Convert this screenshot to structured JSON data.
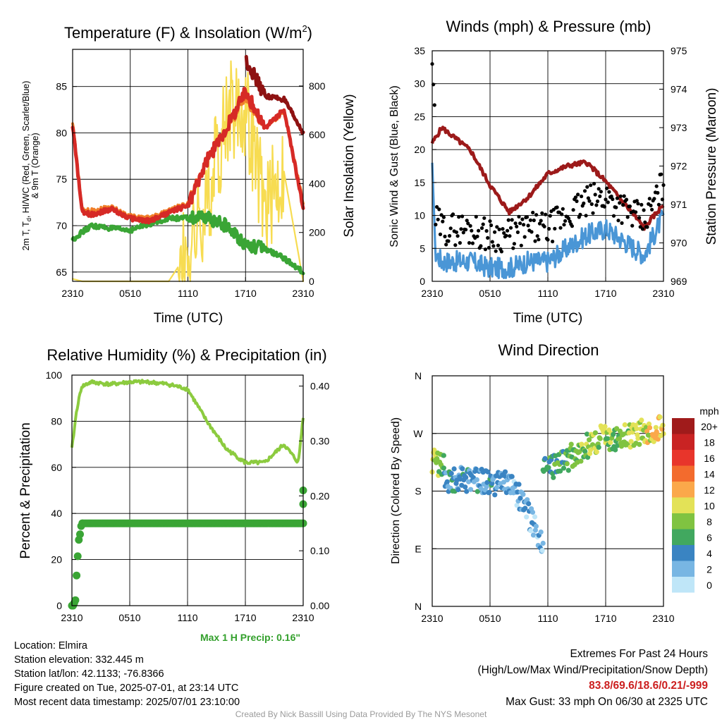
{
  "x_ticks": [
    "2310",
    "0510",
    "1110",
    "1710",
    "2310"
  ],
  "temperature_panel": {
    "title_main": "Temperature (F) & Insolation (W/m",
    "title_sup": "2",
    "title_close": ")",
    "ylabel_line1": "2m T, T",
    "ylabel_sub": "d",
    "ylabel_line1_rest": ", HI/WC (Red, Green, Scarlet/Blue)",
    "ylabel_line2": "& 9m T (Orange)",
    "y2label": "Solar Insolation (Yellow)",
    "xlabel": "Time (UTC)",
    "y_ticks": [
      "65",
      "70",
      "75",
      "80",
      "85"
    ],
    "y2_ticks": [
      "0",
      "200",
      "400",
      "600",
      "800"
    ]
  },
  "wind_panel": {
    "title": "Winds (mph) & Pressure (mb)",
    "ylabel": "Sonic Wind & Gust (Blue, Black)",
    "y2label": "Station Pressure (Maroon)",
    "xlabel": "Time (UTC)",
    "y_ticks": [
      "0",
      "5",
      "10",
      "15",
      "20",
      "25",
      "30",
      "35"
    ],
    "y2_ticks": [
      "969",
      "970",
      "971",
      "972",
      "973",
      "974",
      "975"
    ]
  },
  "rh_panel": {
    "title": "Relative Humidity (%) & Precipitation (in)",
    "ylabel": "Percent & Precipitation",
    "y_ticks": [
      "0",
      "20",
      "40",
      "60",
      "80",
      "100"
    ],
    "y2_ticks": [
      "0.00",
      "0.10",
      "0.20",
      "0.30",
      "0.40"
    ],
    "max_precip": "Max 1 H Precip: 0.16\""
  },
  "dir_panel": {
    "title": "Wind Direction",
    "ylabel": "Direction (Colored By Speed)",
    "y_ticks": [
      "N",
      "E",
      "S",
      "W",
      "N"
    ],
    "legend_title": "mph",
    "legend_labels": [
      "20+",
      "18",
      "16",
      "14",
      "12",
      "10",
      "8",
      "6",
      "4",
      "2",
      "0"
    ],
    "legend_colors": [
      "#a01b1b",
      "#c92323",
      "#e8352b",
      "#f36b2d",
      "#fba84a",
      "#e3e257",
      "#80c341",
      "#41a85f",
      "#3a84c2",
      "#78b6e3",
      "#bfe6f8"
    ]
  },
  "info": {
    "location": "Location: Elmira",
    "elevation": "Station elevation: 332.445 m",
    "latlon": "Station lat/lon: 42.1133; -76.8366",
    "created": "Figure created on Tue, 2025-07-01, at 23:14 UTC",
    "recent": "Most recent data timestamp: 2025/07/01 23:10:00",
    "extremes_title": "Extremes For Past 24 Hours",
    "extremes_sub": "(High/Low/Max Wind/Precipitation/Snow Depth)",
    "extremes_values": "83.8/69.6/18.6/0.21/-999",
    "max_gust": "Max Gust: 33 mph On 06/30 at 2325 UTC"
  },
  "credit": "Created By Nick Bassill Using Data Provided By The NYS Mesonet",
  "colors": {
    "temp": "#d62a26",
    "heat_index": "#8e1212",
    "dewpoint": "#3aa535",
    "nine_m": "#f07f2a",
    "insolation": "#f7dc52",
    "wind": "#4a96d6",
    "gust": "#000000",
    "pressure": "#9c1a1a",
    "rh": "#8ccb3f",
    "precip": "#3aa535"
  },
  "chart_data": [
    {
      "type": "line",
      "name": "temperature",
      "x": [
        0,
        1,
        2,
        4,
        6,
        8,
        10,
        12,
        14,
        16,
        18,
        20,
        22,
        24
      ],
      "xlim": [
        0,
        24
      ],
      "ylim": [
        64,
        89
      ],
      "y2lim": [
        0,
        950
      ],
      "series": [
        {
          "key": "t2m",
          "values": [
            80.8,
            71.4,
            71.2,
            71.8,
            70.8,
            70.5,
            71.4,
            72.2,
            77.0,
            80.5,
            84.5,
            80.5,
            82.5,
            72.0
          ]
        },
        {
          "key": "hi",
          "values": [
            83.6,
            null,
            null,
            null,
            null,
            null,
            null,
            null,
            null,
            null,
            88.0,
            84.0,
            83.6,
            80.0
          ]
        },
        {
          "key": "t9m",
          "values": [
            81.2,
            71.6,
            71.6,
            72.0,
            71.0,
            70.8,
            71.6,
            72.4,
            77.0,
            80.5,
            84.0,
            80.5,
            82.3,
            72.5
          ]
        },
        {
          "key": "td",
          "values": [
            68.5,
            69.3,
            70.0,
            69.7,
            69.5,
            70.2,
            70.8,
            70.8,
            70.8,
            70.0,
            68.0,
            67.5,
            66.5,
            65.0
          ]
        },
        {
          "key": "insolation",
          "values": [
            10,
            0,
            0,
            0,
            0,
            0,
            0,
            120,
            300,
            700,
            700,
            300,
            450,
            0
          ]
        }
      ]
    },
    {
      "type": "line",
      "name": "winds",
      "x": [
        0,
        1,
        2,
        4,
        6,
        8,
        10,
        12,
        14,
        16,
        18,
        20,
        22,
        24
      ],
      "xlim": [
        0,
        24
      ],
      "ylim": [
        0,
        35
      ],
      "y2lim": [
        969,
        975
      ],
      "series": [
        {
          "key": "wind",
          "values": [
            5,
            3,
            3,
            3,
            2,
            2,
            3,
            3,
            5,
            7,
            8,
            6,
            4,
            10
          ]
        },
        {
          "key": "gust",
          "values": [
            33,
            7,
            7,
            5,
            4,
            5,
            6,
            6,
            10,
            13,
            13,
            11,
            9,
            18
          ]
        },
        {
          "key": "pressure",
          "values": [
            972.6,
            973.0,
            972.8,
            972.4,
            971.5,
            970.8,
            971.2,
            971.8,
            972.0,
            972.1,
            971.6,
            971.0,
            970.4,
            971.0
          ]
        }
      ]
    },
    {
      "type": "line",
      "name": "rh_precip",
      "x": [
        0,
        0.5,
        1,
        2,
        4,
        6,
        8,
        10,
        12,
        14,
        16,
        18,
        20,
        22,
        23.5,
        24
      ],
      "xlim": [
        0,
        24
      ],
      "ylim": [
        0,
        100
      ],
      "y2lim": [
        0,
        0.42
      ],
      "series": [
        {
          "key": "rh",
          "values": [
            68,
            85,
            95,
            97,
            96,
            97,
            97,
            96,
            94,
            80,
            68,
            62,
            62,
            70,
            62,
            82
          ]
        },
        {
          "key": "precip",
          "values": [
            0.0,
            0.05,
            0.15,
            0.15,
            0.15,
            0.15,
            0.15,
            0.15,
            0.15,
            0.15,
            0.15,
            0.15,
            0.15,
            0.15,
            0.15,
            0.21
          ]
        }
      ]
    },
    {
      "type": "scatter",
      "name": "wind_direction",
      "xlim": [
        0,
        24
      ],
      "ylim": [
        0,
        360
      ],
      "y_tick_values": [
        0,
        90,
        180,
        270,
        360
      ],
      "segments": [
        {
          "x": [
            0,
            1.2
          ],
          "dir": [
            225,
            220
          ],
          "speed": [
            10,
            6
          ]
        },
        {
          "x": [
            1.2,
            8
          ],
          "dir": [
            200,
            190
          ],
          "speed": [
            4,
            3
          ]
        },
        {
          "x": [
            8,
            11.5
          ],
          "dir": [
            200,
            100
          ],
          "speed": [
            3,
            2
          ]
        },
        {
          "x": [
            11.5,
            14
          ],
          "dir": [
            210,
            230
          ],
          "speed": [
            5,
            6
          ]
        },
        {
          "x": [
            14,
            18
          ],
          "dir": [
            230,
            270
          ],
          "speed": [
            7,
            9
          ]
        },
        {
          "x": [
            18,
            24
          ],
          "dir": [
            260,
            280
          ],
          "speed": [
            7,
            11
          ]
        }
      ]
    }
  ]
}
